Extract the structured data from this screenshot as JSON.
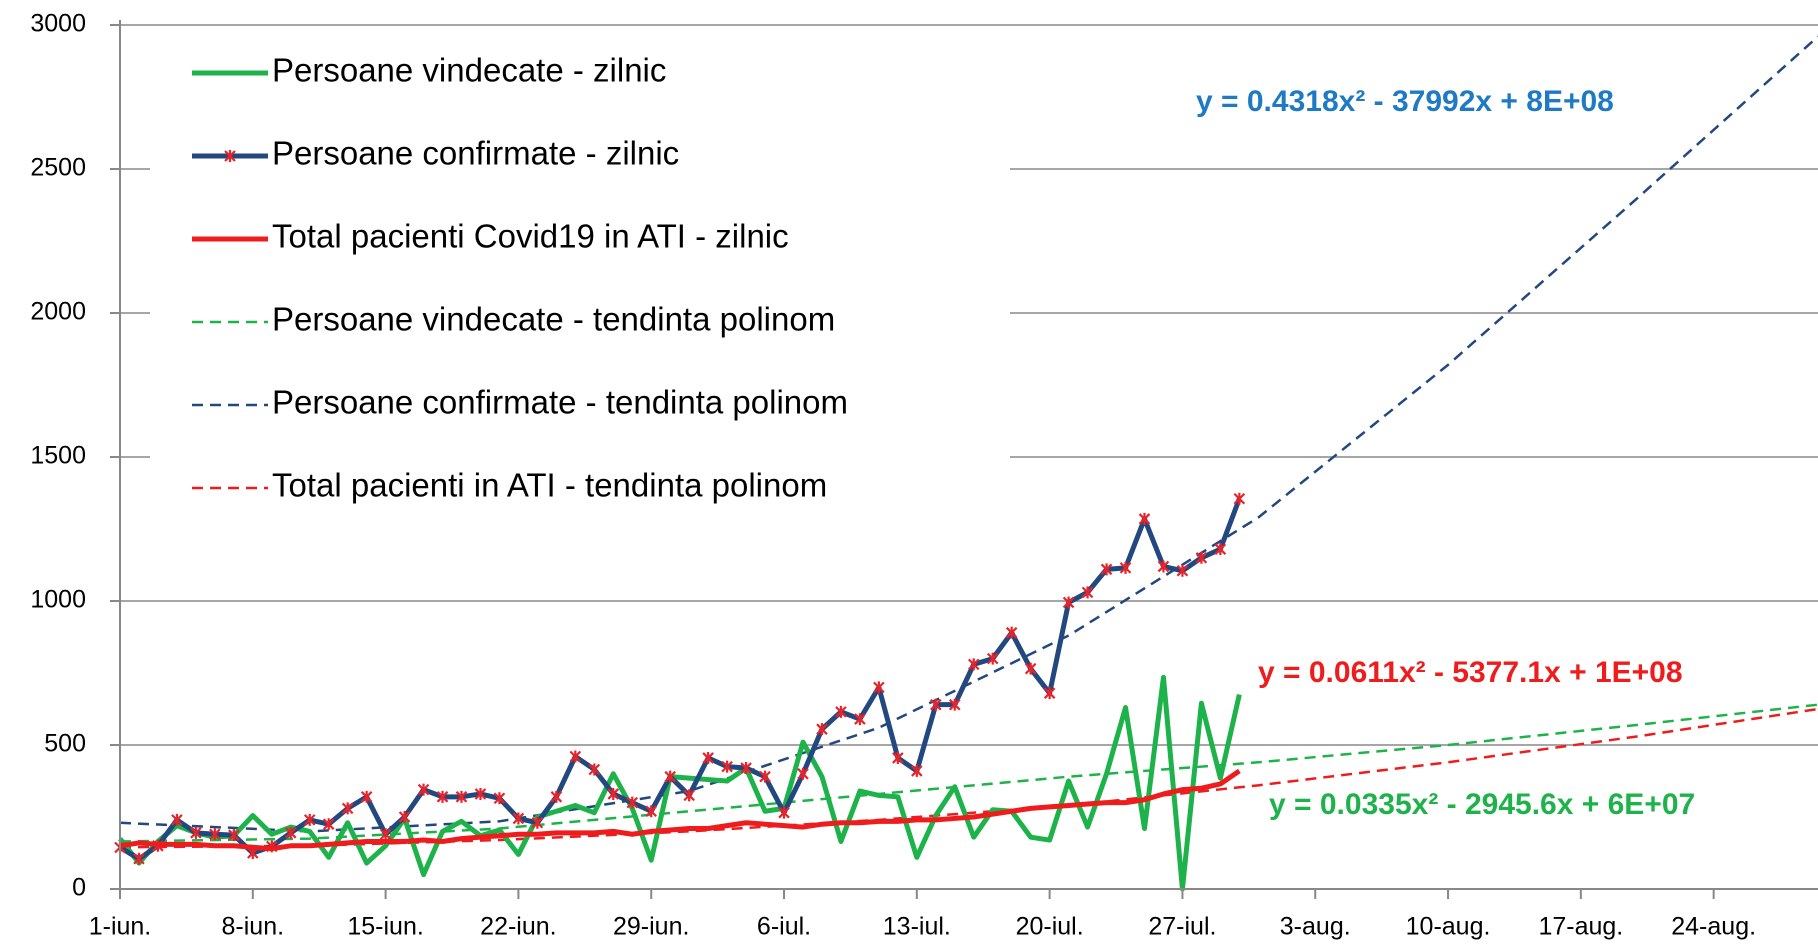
{
  "chart_data": {
    "type": "line",
    "xlim": [
      0,
      89.5
    ],
    "xticks": [
      {
        "value": 0,
        "label": "1-iun."
      },
      {
        "value": 7,
        "label": "8-iun."
      },
      {
        "value": 14,
        "label": "15-iun."
      },
      {
        "value": 21,
        "label": "22-iun."
      },
      {
        "value": 28,
        "label": "29-iun."
      },
      {
        "value": 35,
        "label": "6-iul."
      },
      {
        "value": 42,
        "label": "13-iul."
      },
      {
        "value": 49,
        "label": "20-iul."
      },
      {
        "value": 56,
        "label": "27-iul."
      },
      {
        "value": 63,
        "label": "3-aug."
      },
      {
        "value": 70,
        "label": "10-aug."
      },
      {
        "value": 77,
        "label": "17-aug."
      },
      {
        "value": 84,
        "label": "24-aug."
      }
    ],
    "ylim": [
      0,
      3000
    ],
    "yticks": [
      0,
      500,
      1000,
      1500,
      2000,
      2500,
      3000
    ],
    "grid": true,
    "legend": "top-left",
    "x": [
      0,
      1,
      2,
      3,
      4,
      5,
      6,
      7,
      8,
      9,
      10,
      11,
      12,
      13,
      14,
      15,
      16,
      17,
      18,
      19,
      20,
      21,
      22,
      23,
      24,
      25,
      26,
      27,
      28,
      29,
      30,
      31,
      32,
      33,
      34,
      35,
      36,
      37,
      38,
      39,
      40,
      41,
      42,
      43,
      44,
      45,
      46,
      47,
      48,
      49,
      50,
      51,
      52,
      53,
      54,
      55,
      56,
      57,
      58,
      59
    ],
    "series": [
      {
        "name": "Persoane vindecate - zilnic",
        "color": "#1db34a",
        "dashed": false,
        "marker": false,
        "values": [
          175,
          90,
          165,
          220,
          195,
          180,
          185,
          255,
          190,
          215,
          200,
          110,
          230,
          90,
          150,
          245,
          50,
          200,
          235,
          185,
          205,
          120,
          250,
          270,
          290,
          265,
          400,
          280,
          100,
          390,
          385,
          380,
          375,
          420,
          270,
          280,
          510,
          390,
          165,
          340,
          325,
          320,
          110,
          255,
          355,
          180,
          275,
          270,
          180,
          170,
          375,
          215,
          400,
          630,
          210,
          735,
          0,
          645,
          385,
          675
        ]
      },
      {
        "name": "Persoane confirmate - zilnic",
        "color": "#23487f",
        "dashed": false,
        "marker": true,
        "marker_color": "#e8242a",
        "values": [
          144,
          105,
          150,
          240,
          195,
          190,
          187,
          125,
          148,
          195,
          240,
          225,
          280,
          320,
          190,
          250,
          345,
          320,
          320,
          330,
          315,
          245,
          230,
          320,
          460,
          415,
          330,
          300,
          270,
          390,
          325,
          455,
          425,
          420,
          390,
          265,
          400,
          555,
          615,
          590,
          700,
          455,
          410,
          640,
          640,
          780,
          800,
          890,
          765,
          680,
          995,
          1030,
          1110,
          1115,
          1285,
          1120,
          1105,
          1150,
          1180,
          1355
        ]
      },
      {
        "name": "Total pacienti Covid19 in ATI - zilnic",
        "color": "#ee1c1c",
        "dashed": false,
        "marker": false,
        "values": [
          150,
          160,
          155,
          155,
          155,
          150,
          150,
          145,
          140,
          150,
          150,
          155,
          160,
          165,
          165,
          165,
          170,
          165,
          175,
          180,
          185,
          190,
          190,
          195,
          195,
          195,
          200,
          190,
          200,
          205,
          210,
          210,
          220,
          230,
          225,
          220,
          215,
          225,
          230,
          230,
          235,
          235,
          240,
          240,
          245,
          250,
          260,
          270,
          280,
          285,
          290,
          295,
          300,
          300,
          310,
          330,
          345,
          350,
          365,
          410
        ]
      },
      {
        "name": "Persoane vindecate - tendinta polinom",
        "color": "#1db34a",
        "dashed": true,
        "marker": false,
        "x": [
          0,
          10,
          20,
          30,
          40,
          50,
          60,
          70,
          80,
          89.5
        ],
        "values": [
          165,
          175,
          210,
          270,
          330,
          390,
          440,
          500,
          570,
          640
        ]
      },
      {
        "name": "Persoane confirmate - tendinta polinom",
        "color": "#23487f",
        "dashed": true,
        "marker": false,
        "x": [
          0,
          10,
          20,
          30,
          40,
          50,
          60,
          70,
          80,
          89.5
        ],
        "values": [
          230,
          200,
          235,
          340,
          560,
          880,
          1290,
          1820,
          2400,
          2960
        ]
      },
      {
        "name": "Total pacienti in ATI - tendinta polinom",
        "color": "#ee1c1c",
        "dashed": true,
        "marker": false,
        "x": [
          0,
          10,
          20,
          30,
          40,
          50,
          60,
          70,
          80,
          89.5
        ],
        "values": [
          145,
          150,
          170,
          200,
          240,
          290,
          360,
          440,
          530,
          625
        ]
      }
    ],
    "annotations": [
      {
        "text": "y = 0.4318x² - 37992x + 8E+08",
        "color": "#1f7ac4"
      },
      {
        "text": "y = 0.0611x² - 5377.1x + 1E+08",
        "color": "#ee1c1c"
      },
      {
        "text": "y = 0.0335x² - 2945.6x + 6E+07",
        "color": "#1db34a"
      }
    ]
  }
}
